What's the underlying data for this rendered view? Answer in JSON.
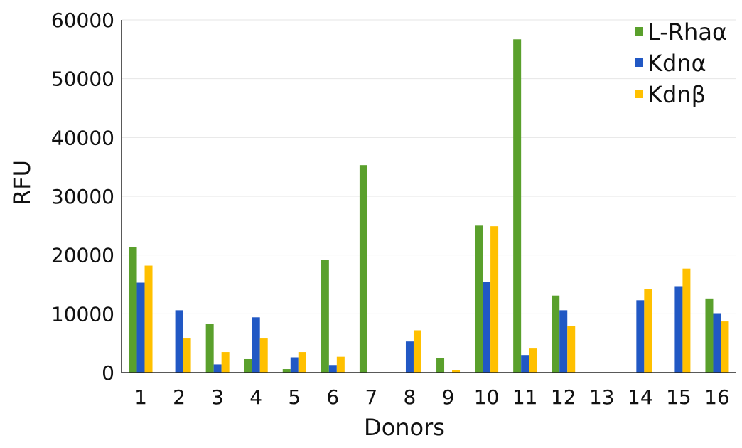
{
  "chart_data": {
    "type": "bar",
    "categories": [
      "1",
      "2",
      "3",
      "4",
      "5",
      "6",
      "7",
      "8",
      "9",
      "10",
      "11",
      "12",
      "13",
      "14",
      "15",
      "16"
    ],
    "series": [
      {
        "name": "L-Rhaα",
        "color": "#5aa02c",
        "values": [
          21300,
          0,
          8300,
          2300,
          600,
          19200,
          35300,
          0,
          2500,
          25000,
          56700,
          13100,
          0,
          0,
          0,
          12600
        ]
      },
      {
        "name": "Kdnα",
        "color": "#2158c4",
        "values": [
          15300,
          10600,
          1400,
          9400,
          2600,
          1300,
          0,
          5300,
          0,
          15400,
          3000,
          10600,
          0,
          12300,
          14700,
          10100
        ]
      },
      {
        "name": "Kdnβ",
        "color": "#ffc000",
        "values": [
          18200,
          5800,
          3500,
          5800,
          3500,
          2700,
          0,
          7200,
          400,
          24900,
          4100,
          7900,
          0,
          14200,
          17700,
          8700
        ]
      }
    ],
    "yticks": [
      "0",
      "10000",
      "20000",
      "30000",
      "40000",
      "50000",
      "60000"
    ],
    "ylim": [
      0,
      60000
    ],
    "xlabel": "Donors",
    "ylabel": "RFU",
    "grid": true,
    "legend_position": "top-right"
  }
}
